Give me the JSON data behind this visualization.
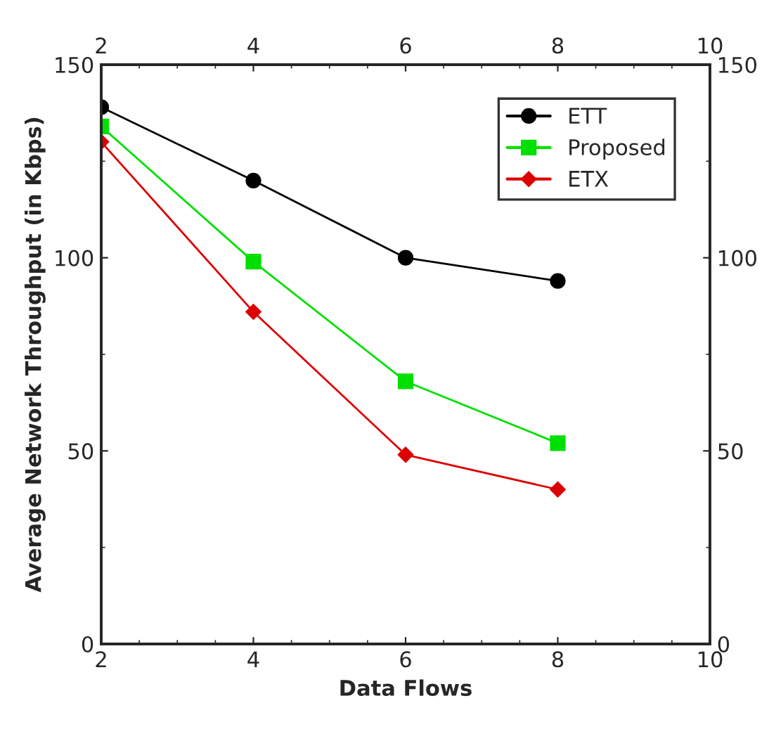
{
  "chart_data": {
    "type": "line",
    "xlabel": "Data Flows",
    "ylabel": "Average Network Throughput (in Kbps)",
    "x": [
      2,
      4,
      6,
      8
    ],
    "series": [
      {
        "name": "ETT",
        "color": "#000000",
        "marker": "circle",
        "values": [
          139,
          120,
          100,
          94
        ]
      },
      {
        "name": "Proposed",
        "color": "#00e000",
        "marker": "square",
        "values": [
          134,
          99,
          68,
          52
        ]
      },
      {
        "name": "ETX",
        "color": "#dd0000",
        "marker": "diamond",
        "values": [
          130,
          86,
          49,
          40
        ]
      }
    ],
    "xlim": [
      2,
      10
    ],
    "xticks": [
      2,
      4,
      6,
      8,
      10
    ],
    "x2lim": [
      2,
      10
    ],
    "x2ticks": [
      2,
      4,
      6,
      8,
      10
    ],
    "ylim": [
      0,
      150
    ],
    "yticks": [
      0,
      50,
      100,
      150
    ],
    "y2lim": [
      0,
      150
    ],
    "y2ticks": [
      0,
      50,
      100,
      150
    ],
    "grid": false,
    "legend": "top right",
    "line_style": "solid"
  }
}
